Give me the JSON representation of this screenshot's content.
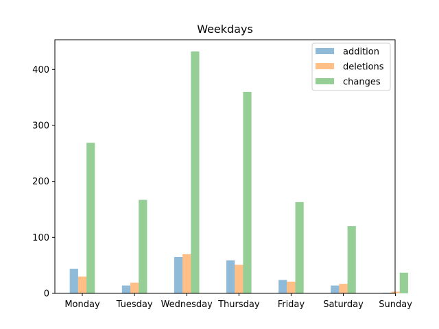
{
  "chart_data": {
    "type": "bar",
    "title": "Weekdays",
    "xlabel": "",
    "ylabel": "",
    "categories": [
      "Monday",
      "Tuesday",
      "Wednesday",
      "Thursday",
      "Friday",
      "Saturday",
      "Sunday"
    ],
    "series": [
      {
        "name": "addition",
        "color": "#1f77b4",
        "values": [
          44,
          14,
          65,
          59,
          24,
          14,
          1
        ]
      },
      {
        "name": "deletions",
        "color": "#ff7f0e",
        "values": [
          30,
          19,
          70,
          51,
          21,
          17,
          3
        ]
      },
      {
        "name": "changes",
        "color": "#2ca02c",
        "values": [
          269,
          167,
          432,
          360,
          163,
          120,
          37
        ]
      }
    ],
    "yticks": [
      0,
      100,
      200,
      300,
      400
    ],
    "ylim": [
      0,
      453
    ],
    "bar_alpha": 0.5,
    "grid": false,
    "legend_position": "top-right"
  }
}
